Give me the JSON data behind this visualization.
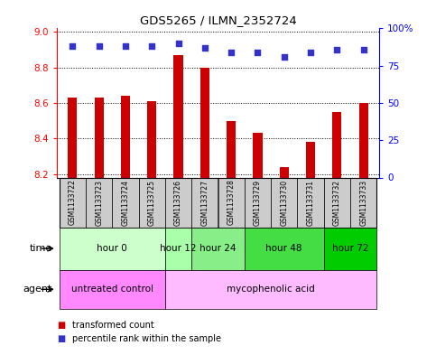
{
  "title": "GDS5265 / ILMN_2352724",
  "samples": [
    "GSM1133722",
    "GSM1133723",
    "GSM1133724",
    "GSM1133725",
    "GSM1133726",
    "GSM1133727",
    "GSM1133728",
    "GSM1133729",
    "GSM1133730",
    "GSM1133731",
    "GSM1133732",
    "GSM1133733"
  ],
  "transformed_counts": [
    8.63,
    8.63,
    8.64,
    8.61,
    8.87,
    8.8,
    8.5,
    8.43,
    8.24,
    8.38,
    8.55,
    8.6
  ],
  "percentile_ranks": [
    88,
    88,
    88,
    88,
    90,
    87,
    84,
    84,
    81,
    84,
    86,
    86
  ],
  "ymin": 8.18,
  "ymax": 9.02,
  "yticks": [
    8.2,
    8.4,
    8.6,
    8.8,
    9.0
  ],
  "rmin": 0,
  "rmax": 100,
  "rticks": [
    0,
    25,
    50,
    75,
    100
  ],
  "rtick_labels": [
    "0",
    "25",
    "50",
    "75",
    "100%"
  ],
  "bar_color": "#cc0000",
  "dot_color": "#3333cc",
  "bar_width": 0.35,
  "time_groups": [
    {
      "label": "hour 0",
      "start": 0,
      "end": 3,
      "color": "#ccffcc"
    },
    {
      "label": "hour 12",
      "start": 4,
      "end": 4,
      "color": "#aaffaa"
    },
    {
      "label": "hour 24",
      "start": 5,
      "end": 6,
      "color": "#88ee88"
    },
    {
      "label": "hour 48",
      "start": 7,
      "end": 9,
      "color": "#44dd44"
    },
    {
      "label": "hour 72",
      "start": 10,
      "end": 11,
      "color": "#00cc00"
    }
  ],
  "agent_groups": [
    {
      "label": "untreated control",
      "start": 0,
      "end": 3,
      "color": "#ff88ff"
    },
    {
      "label": "mycophenolic acid",
      "start": 4,
      "end": 11,
      "color": "#ffbbff"
    }
  ],
  "sample_box_color": "#cccccc",
  "legend_red_label": "transformed count",
  "legend_blue_label": "percentile rank within the sample",
  "fig_width": 4.83,
  "fig_height": 3.93,
  "dpi": 100
}
